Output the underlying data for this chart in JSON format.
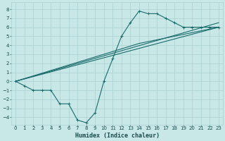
{
  "title": "",
  "xlabel": "Humidex (Indice chaleur)",
  "background_color": "#c8e8e8",
  "grid_color": "#aacfcf",
  "line_color": "#1a6b6b",
  "xlim": [
    -0.5,
    23.5
  ],
  "ylim": [
    -4.8,
    8.8
  ],
  "xticks": [
    0,
    1,
    2,
    3,
    4,
    5,
    6,
    7,
    8,
    9,
    10,
    11,
    12,
    13,
    14,
    15,
    16,
    17,
    18,
    19,
    20,
    21,
    22,
    23
  ],
  "yticks": [
    -4,
    -3,
    -2,
    -1,
    0,
    1,
    2,
    3,
    4,
    5,
    6,
    7,
    8
  ],
  "curve1_x": [
    0,
    1,
    2,
    3,
    4,
    5,
    6,
    7,
    8,
    9,
    10,
    11,
    12,
    13,
    14,
    15,
    16,
    17,
    18,
    19,
    20,
    21,
    22,
    23
  ],
  "curve1_y": [
    0,
    -0.5,
    -1,
    -1,
    -1,
    -2.5,
    -2.5,
    -4.3,
    -4.6,
    -3.5,
    0,
    2.5,
    5,
    6.5,
    7.8,
    7.5,
    7.5,
    7.0,
    6.5,
    6,
    6,
    6,
    6,
    6
  ],
  "line1_x": [
    0,
    23
  ],
  "line1_y": [
    0,
    6.0
  ],
  "line2_x": [
    0,
    14,
    23
  ],
  "line2_y": [
    0,
    4.2,
    6.0
  ],
  "line3_x": [
    0,
    23
  ],
  "line3_y": [
    0,
    6.5
  ],
  "tick_fontsize": 5,
  "xlabel_fontsize": 6
}
